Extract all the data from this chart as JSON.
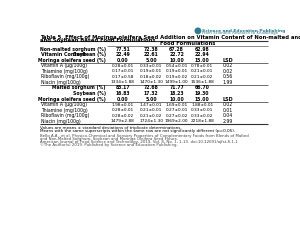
{
  "title1": "Table 5. Effect of Moringa oleifera Seed Addition on Vitamin Content of Non-malted and Malted Sorghum",
  "title2": "and Soybean Based Food Formulations",
  "header_group": "Food Formulations",
  "nm_subheaders": [
    [
      "Non-malted sorghum (%)",
      "77.51",
      "72.38",
      "67.28",
      "62.98"
    ],
    [
      "Soybean (%)",
      "22.49",
      "22.61",
      "22.72",
      "22.94"
    ],
    [
      "Moringa oleifera seed (%)",
      "0.00",
      "5.00",
      "10.00",
      "15.00"
    ]
  ],
  "rows_nonmalted": [
    [
      "Vitamin A (μg/100g)",
      "0.28±0.01",
      "0.33±0.01",
      "0.54±0.01",
      "0.78±0.01",
      "0.02"
    ],
    [
      "Thiamine (mg/100g)",
      "0.17±0.01",
      "0.19±0.01",
      "0.19±0.01",
      "0.21±0.01",
      "0.02"
    ],
    [
      "Riboflavin (mg/100g)",
      "0.17±0.58",
      "0.18±0.02",
      "0.19±0.02",
      "0.21±0.02",
      "0.56"
    ],
    [
      "Niacin (mg/100g)",
      "1334±1.88",
      "1470±1.30",
      "1499±1.00",
      "1536±1.88",
      "1.99"
    ]
  ],
  "m_subheaders": [
    [
      "Malted sorghum (%)",
      "83.17",
      "72.68",
      "71.77",
      "66.70"
    ],
    [
      "Soybean (%)",
      "16.83",
      "17.32",
      "18.23",
      "19.30"
    ],
    [
      "Moringa oleifera seed (%)",
      "0.00",
      "5.00",
      "10.00",
      "15.00"
    ]
  ],
  "rows_malted": [
    [
      "Vitamin A (μg/100g)",
      "1.98±0.01",
      "1.47±0.01",
      "1.69±0.01",
      "1.88±0.01",
      "0.02"
    ],
    [
      "Thiamine (mg/100g)",
      "0.28±0.01",
      "0.21±0.01",
      "0.27±0.01",
      "0.33±0.01",
      "0.01"
    ],
    [
      "Riboflavin (mg/100g)",
      "0.28±0.02",
      "0.21±0.02",
      "0.27±0.02",
      "0.33±0.02",
      "0.04"
    ],
    [
      "Niacin (mg/100g)",
      "1479±2.88",
      "1724±1.30",
      "1969±2.00",
      "2218±1.88",
      "2.99"
    ]
  ],
  "footnotes": [
    "Values are means ± standard deviations of triplicate determinations.",
    "Means with the same superscripts within the same row are not significantly different (p=0.05)."
  ],
  "citation": [
    "Bello A.A., et al. Physico-Chemical and Sensory Properties of Complementary Foods from Blends of Malted",
    "and Non-Malted Sorghum, Soybean and Moringa Oleifera Seed Flours.",
    "American Journal of Food Science and Technology, 2019, Vol. 8, No. 1, 1-13. doi:10.12691/ajfst-8-1-1",
    "©The Author(s) 2019. Published by Science and Education Publishing."
  ],
  "logo_line1": "Science and Education Publishing",
  "logo_line2": "From Scientific Research to Knowledge",
  "bg_color": "#FFFFFF"
}
